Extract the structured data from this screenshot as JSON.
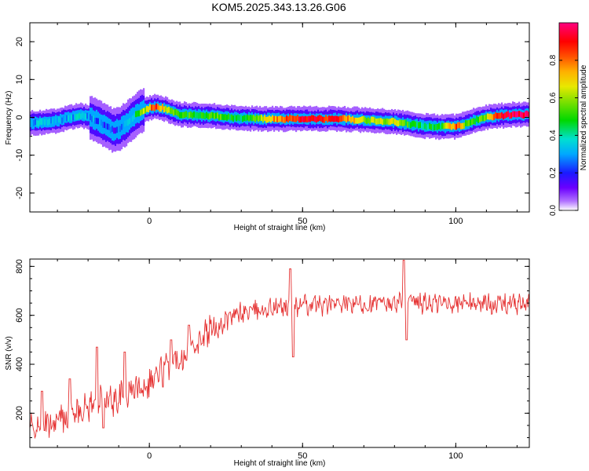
{
  "title": "KOM5.2025.343.13.26.G06",
  "chart_data": [
    {
      "type": "heatmap",
      "name": "spectrogram",
      "xlabel": "Height of straight line (km)",
      "ylabel": "Frequency (Hz)",
      "xlim": [
        -39,
        124
      ],
      "ylim": [
        -25,
        25
      ],
      "xticks": [
        0,
        50,
        100
      ],
      "xtick_labels": [
        "0",
        "50",
        "100"
      ],
      "yticks": [
        -20,
        -10,
        0,
        10,
        20
      ],
      "ytick_labels": [
        "-20",
        "-10",
        "0",
        "10",
        "20"
      ],
      "colorbar": {
        "label": "Normalized spectral amplitude",
        "range": [
          0,
          1
        ],
        "ticks": [
          0.0,
          0.2,
          0.4,
          0.6,
          0.8
        ],
        "tick_labels": [
          "0.0",
          "0.2",
          "0.4",
          "0.6",
          "0.8"
        ]
      },
      "ridge": {
        "x": [
          -39,
          -34,
          -30,
          -26,
          -23,
          -20,
          -17,
          -14,
          -12,
          -10,
          -8,
          -6,
          -4,
          -2,
          0,
          2,
          4,
          6,
          8,
          10,
          14,
          18,
          22,
          26,
          30,
          34,
          38,
          45,
          50,
          55,
          60,
          65,
          70,
          75,
          80,
          85,
          90,
          95,
          100,
          103,
          106,
          110,
          114,
          118,
          124
        ],
        "y": [
          -1.5,
          -1.2,
          -0.8,
          0.0,
          0.5,
          0.2,
          -1.0,
          -2.5,
          -3.5,
          -3.0,
          -1.8,
          -0.3,
          1.0,
          2.0,
          2.5,
          2.8,
          2.5,
          1.8,
          1.2,
          0.8,
          0.6,
          0.5,
          0.3,
          0.0,
          -0.2,
          -0.3,
          -0.4,
          -0.4,
          -0.4,
          -0.4,
          -0.4,
          -0.5,
          -0.7,
          -0.9,
          -1.2,
          -1.8,
          -2.3,
          -2.5,
          -2.4,
          -1.8,
          -0.8,
          0.0,
          0.4,
          0.7,
          0.8
        ],
        "amplitude": [
          0.3,
          0.35,
          0.3,
          0.3,
          0.35,
          0.3,
          0.25,
          0.2,
          0.2,
          0.25,
          0.3,
          0.35,
          0.45,
          0.6,
          0.75,
          0.9,
          0.7,
          0.6,
          0.55,
          0.5,
          0.5,
          0.5,
          0.55,
          0.5,
          0.45,
          0.5,
          0.7,
          0.85,
          0.9,
          0.9,
          0.88,
          0.75,
          0.6,
          0.6,
          0.65,
          0.45,
          0.4,
          0.5,
          0.85,
          0.55,
          0.5,
          0.6,
          0.9,
          0.95,
          0.95
        ]
      }
    },
    {
      "type": "line",
      "name": "snr",
      "xlabel": "Height of straight line (km)",
      "ylabel": "SNR (v/v)",
      "xlim": [
        -39,
        124
      ],
      "ylim": [
        60,
        830
      ],
      "xticks": [
        0,
        50,
        100
      ],
      "xtick_labels": [
        "0",
        "50",
        "100"
      ],
      "yticks": [
        200,
        400,
        600,
        800
      ],
      "ytick_labels": [
        "200",
        "400",
        "600",
        "800"
      ],
      "color": "#e53030",
      "trend": {
        "x": [
          -39,
          -30,
          -20,
          -10,
          -5,
          0,
          5,
          10,
          15,
          20,
          25,
          30,
          40,
          50,
          60,
          70,
          80,
          90,
          100,
          110,
          124
        ],
        "y": [
          130,
          170,
          230,
          260,
          300,
          330,
          380,
          430,
          490,
          540,
          580,
          610,
          630,
          640,
          645,
          645,
          650,
          650,
          650,
          650,
          645
        ]
      },
      "spikes": [
        {
          "x": -35,
          "y": 290
        },
        {
          "x": -26,
          "y": 340
        },
        {
          "x": -17,
          "y": 470
        },
        {
          "x": -15,
          "y": 140
        },
        {
          "x": -8,
          "y": 450
        },
        {
          "x": 7,
          "y": 500
        },
        {
          "x": 13,
          "y": 560
        },
        {
          "x": 46,
          "y": 790
        },
        {
          "x": 47,
          "y": 430
        },
        {
          "x": 83,
          "y": 825
        },
        {
          "x": 84,
          "y": 500
        }
      ]
    }
  ]
}
